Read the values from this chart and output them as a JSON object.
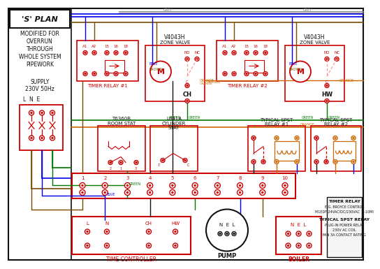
{
  "bg_color": "#ffffff",
  "red": "#cc0000",
  "blue": "#0000ee",
  "green": "#007700",
  "orange": "#cc6600",
  "brown": "#7a4a00",
  "black": "#111111",
  "gray": "#888888",
  "pink": "#ff9999",
  "title": "'S' PLAN",
  "subtitle_lines": [
    "MODIFIED FOR",
    "OVERRUN",
    "THROUGH",
    "WHOLE SYSTEM",
    "PIPEWORK"
  ],
  "info_box_text": [
    "TIMER RELAY",
    "E.G. BROYCE CONTROL",
    "M1EDF 24VAC/DC/230VAC  5-10MI",
    "",
    "TYPICAL SPST RELAY",
    "PLUG-IN POWER RELAY",
    "230V AC COIL",
    "MIN 3A CONTACT RATING"
  ]
}
